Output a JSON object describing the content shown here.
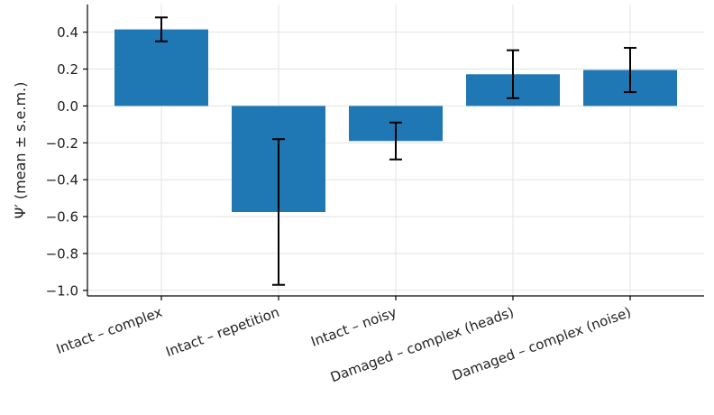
{
  "chart_data": {
    "type": "bar",
    "title": "",
    "xlabel": "",
    "ylabel": "Ψ′ (mean ± s.e.m.)",
    "categories": [
      "Intact – complex",
      "Intact – repetition",
      "Intact – noisy",
      "Damaged – complex (heads)",
      "Damaged – complex (noise)"
    ],
    "values": [
      0.415,
      -0.575,
      -0.19,
      0.172,
      0.195
    ],
    "errors": [
      0.065,
      0.395,
      0.1,
      0.13,
      0.12
    ],
    "ylim": [
      -1.03,
      0.55
    ],
    "yticks": [
      0.4,
      0.2,
      0.0,
      -0.2,
      -0.4,
      -0.6,
      -0.8,
      -1.0
    ],
    "ytick_labels": [
      "0.4",
      "0.2",
      "0.0",
      "−0.2",
      "−0.4",
      "−0.6",
      "−0.8",
      "−1.0"
    ],
    "grid": true,
    "bar_color": "#1f77b4",
    "error_color": "#000000",
    "grid_color": "#e3e3e3"
  }
}
